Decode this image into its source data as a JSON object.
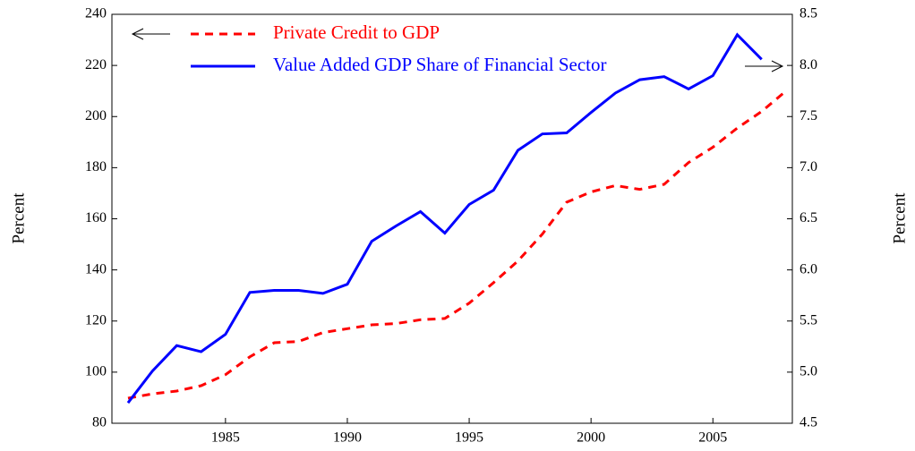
{
  "chart_data": {
    "type": "line",
    "x": [
      1981,
      1982,
      1983,
      1984,
      1985,
      1986,
      1987,
      1988,
      1989,
      1990,
      1991,
      1992,
      1993,
      1994,
      1995,
      1996,
      1997,
      1998,
      1999,
      2000,
      2001,
      2002,
      2003,
      2004,
      2005,
      2006,
      2007,
      2008
    ],
    "series": [
      {
        "name": "Private Credit to GDP",
        "color": "#ff0000",
        "dash": true,
        "values": [
          89.8,
          91.5,
          92.6,
          94.7,
          99,
          106,
          111.5,
          112,
          115.5,
          117,
          118.5,
          119,
          120.5,
          121,
          127,
          135,
          143.5,
          154,
          166.5,
          170.5,
          173,
          171.5,
          173.5,
          182,
          188,
          195.5,
          202,
          210
        ]
      },
      {
        "name": "Value Added GDP Share of Financial Sector",
        "color": "#0000ff",
        "axis": "y2",
        "values": [
          4.7,
          5.01,
          5.26,
          5.2,
          5.37,
          5.78,
          5.8,
          5.8,
          5.77,
          5.86,
          6.28,
          6.43,
          6.57,
          6.36,
          6.64,
          6.78,
          7.17,
          7.33,
          7.34,
          7.54,
          7.73,
          7.86,
          7.89,
          7.77,
          7.9,
          8.3,
          8.06,
          null
        ]
      }
    ],
    "ylabel": "Percent",
    "y2label": "Percent",
    "xlim": [
      1980.34,
      2008.26
    ],
    "xticks": [
      1985,
      1990,
      1995,
      2000,
      2005
    ],
    "ylim": [
      80,
      240
    ],
    "yticks": [
      80,
      100,
      120,
      140,
      160,
      180,
      200,
      220,
      240
    ],
    "y2lim": [
      4.5,
      8.5
    ],
    "y2ticks": [
      4.5,
      {
        "value": 5,
        "label": "5.0"
      },
      5.5,
      {
        "value": 6,
        "label": "6.0"
      },
      6.5,
      {
        "value": 7,
        "label": "7.0"
      },
      7.5,
      {
        "value": 8,
        "label": "8.0"
      },
      8.5
    ]
  }
}
